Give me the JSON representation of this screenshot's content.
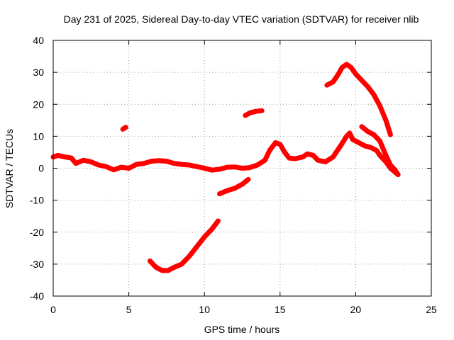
{
  "chart_data": {
    "type": "scatter",
    "title": "Day 231 of 2025, Sidereal Day-to-day VTEC variation (SDTVAR) for receiver nlib",
    "xlabel": "GPS time / hours",
    "ylabel": "SDTVAR / TECUs",
    "xlim": [
      0,
      25
    ],
    "ylim": [
      -40,
      40
    ],
    "xticks": [
      0,
      5,
      10,
      15,
      20,
      25
    ],
    "yticks": [
      -40,
      -30,
      -20,
      -10,
      0,
      10,
      20,
      30,
      40
    ],
    "grid": true,
    "color": "#ff0000",
    "series": [
      {
        "name": "main-trace",
        "points": [
          [
            0,
            3.5
          ],
          [
            0.3,
            4
          ],
          [
            0.8,
            3.5
          ],
          [
            1.2,
            3.2
          ],
          [
            1.5,
            1.5
          ],
          [
            2,
            2.5
          ],
          [
            2.5,
            2
          ],
          [
            3,
            1
          ],
          [
            3.5,
            0.5
          ],
          [
            4,
            -0.5
          ],
          [
            4.5,
            0.3
          ],
          [
            5,
            0
          ],
          [
            5.5,
            1.2
          ],
          [
            6,
            1.5
          ],
          [
            6.5,
            2.2
          ],
          [
            7,
            2.4
          ],
          [
            7.5,
            2.2
          ],
          [
            8,
            1.5
          ],
          [
            8.5,
            1.2
          ],
          [
            9,
            1
          ],
          [
            9.5,
            0.5
          ],
          [
            10,
            0
          ],
          [
            10.5,
            -0.6
          ],
          [
            11,
            -0.3
          ],
          [
            11.5,
            0.3
          ],
          [
            12,
            0.4
          ],
          [
            12.5,
            0
          ],
          [
            13,
            0.2
          ],
          [
            13.5,
            1
          ],
          [
            14,
            2.5
          ],
          [
            14.3,
            5.5
          ],
          [
            14.7,
            8
          ],
          [
            15,
            7.5
          ],
          [
            15.3,
            5
          ],
          [
            15.6,
            3.2
          ],
          [
            16,
            3
          ],
          [
            16.5,
            3.5
          ],
          [
            16.8,
            4.5
          ],
          [
            17.2,
            4
          ],
          [
            17.5,
            2.5
          ],
          [
            18,
            2
          ],
          [
            18.5,
            3.5
          ],
          [
            19,
            7
          ],
          [
            19.4,
            10
          ],
          [
            19.6,
            11
          ],
          [
            19.8,
            9
          ],
          [
            20.2,
            8
          ],
          [
            20.6,
            7
          ],
          [
            21,
            6.5
          ],
          [
            21.4,
            5.5
          ],
          [
            21.6,
            4
          ],
          [
            21.8,
            3
          ],
          [
            22,
            2
          ],
          [
            22.3,
            0
          ],
          [
            22.6,
            -1.2
          ],
          [
            22.8,
            -2
          ]
        ]
      },
      {
        "name": "upper-right-trace",
        "points": [
          [
            18.1,
            26
          ],
          [
            18.5,
            27
          ],
          [
            18.8,
            29
          ],
          [
            19.1,
            31.5
          ],
          [
            19.4,
            32.5
          ],
          [
            19.7,
            31.5
          ],
          [
            20,
            29.5
          ],
          [
            20.4,
            27.5
          ],
          [
            20.8,
            25.5
          ],
          [
            21.2,
            23
          ],
          [
            21.6,
            19.5
          ],
          [
            22,
            15
          ],
          [
            22.3,
            10.5
          ]
        ]
      },
      {
        "name": "lower-right-trace",
        "points": [
          [
            20.4,
            13
          ],
          [
            20.8,
            11.5
          ],
          [
            21.2,
            10.5
          ],
          [
            21.6,
            8.5
          ],
          [
            22,
            4
          ],
          [
            22.3,
            1
          ],
          [
            22.6,
            -0.5
          ],
          [
            22.8,
            -2
          ]
        ]
      },
      {
        "name": "deep-negative-trace",
        "points": [
          [
            6.4,
            -29
          ],
          [
            6.8,
            -31
          ],
          [
            7.2,
            -32
          ],
          [
            7.6,
            -32
          ],
          [
            8,
            -31
          ],
          [
            8.5,
            -30
          ],
          [
            9,
            -27.5
          ],
          [
            9.5,
            -24.5
          ],
          [
            10,
            -21.5
          ],
          [
            10.5,
            -19
          ],
          [
            10.9,
            -16.5
          ]
        ]
      },
      {
        "name": "minus-eight-trace",
        "points": [
          [
            11,
            -8
          ],
          [
            11.5,
            -7
          ],
          [
            12,
            -6.3
          ],
          [
            12.5,
            -5
          ],
          [
            12.9,
            -3.5
          ]
        ]
      },
      {
        "name": "plus-eighteen-trace",
        "points": [
          [
            12.7,
            16.5
          ],
          [
            13,
            17.3
          ],
          [
            13.4,
            17.8
          ],
          [
            13.8,
            18
          ]
        ]
      },
      {
        "name": "isolated-point-trace",
        "points": [
          [
            4.6,
            12.2
          ],
          [
            4.8,
            12.8
          ]
        ]
      }
    ]
  }
}
